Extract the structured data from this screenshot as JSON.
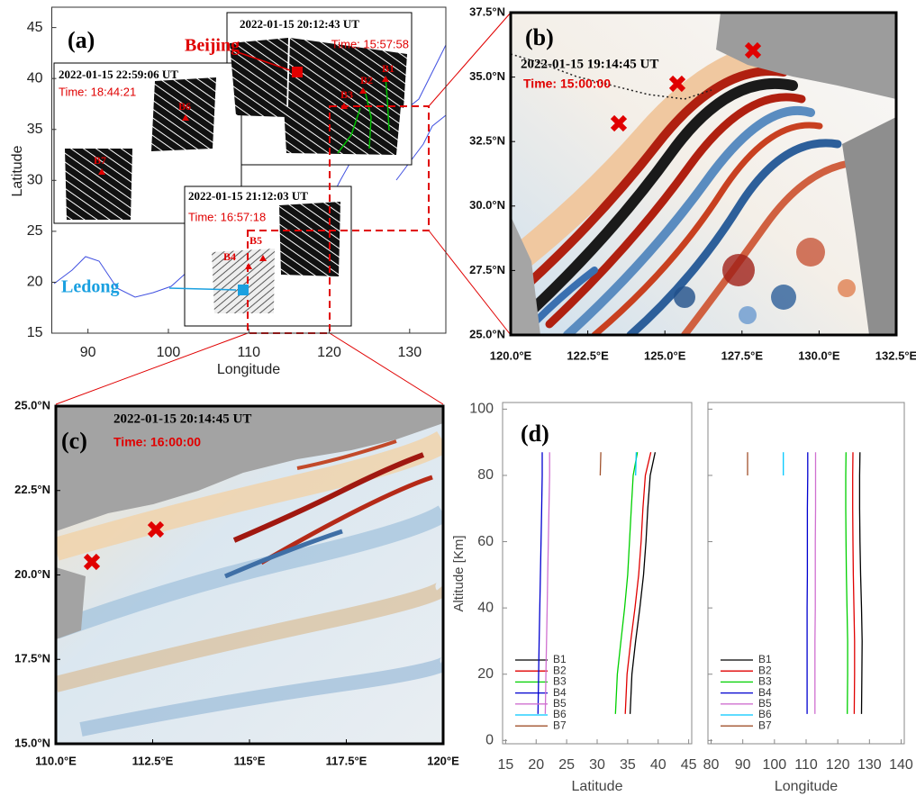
{
  "chart_data": [
    {
      "type": "map",
      "label": "(a)",
      "xlabel": "Longitude",
      "ylabel": "Latitude",
      "xlim": [
        85.5,
        134.5
      ],
      "ylim": [
        15,
        47
      ],
      "xticks": [
        90,
        100,
        110,
        120,
        130
      ],
      "yticks": [
        15,
        20,
        25,
        30,
        35,
        40,
        45
      ],
      "annotations": [
        "2022-01-15 20:12:43 UT",
        "Time: 15:57:58",
        "2022-01-15 22:59:06 UT",
        "Time: 18:44:21",
        "2022-01-15 21:12:03 UT",
        "Time: 16:57:18"
      ],
      "places": [
        "Beijing",
        "Ledong"
      ],
      "stations": [
        "B1",
        "B2",
        "B3",
        "B4",
        "B5",
        "B6",
        "B7"
      ]
    },
    {
      "type": "map",
      "label": "(b)",
      "annotations": [
        "2022-01-15 19:14:45 UT",
        "Time: 15:00:00"
      ],
      "xlim": [
        120,
        132.5
      ],
      "ylim": [
        25,
        37.5
      ],
      "xticks": [
        {
          "value": 120,
          "label": "120.0°E"
        },
        {
          "value": 122.5,
          "label": "122.5°E"
        },
        {
          "value": 125,
          "label": "125.0°E"
        },
        {
          "value": 127.5,
          "label": "127.5°E"
        },
        {
          "value": 130,
          "label": "130.0°E"
        },
        {
          "value": 132.5,
          "label": "132.5°E"
        }
      ],
      "yticks": [
        {
          "value": 25,
          "label": "25.0°N"
        },
        {
          "value": 27.5,
          "label": "27.5°N"
        },
        {
          "value": 30,
          "label": "30.0°N"
        },
        {
          "value": 32.5,
          "label": "32.5°N"
        },
        {
          "value": 35,
          "label": "35.0°N"
        },
        {
          "value": 37.5,
          "label": "37.5°N"
        }
      ]
    },
    {
      "type": "map",
      "label": "(c)",
      "annotations": [
        "2022-01-15 20:14:45 UT",
        "Time: 16:00:00"
      ],
      "xlim": [
        110,
        120
      ],
      "ylim": [
        15,
        25
      ],
      "xticks": [
        {
          "value": 110,
          "label": "110.0°E"
        },
        {
          "value": 112.5,
          "label": "112.5°E"
        },
        {
          "value": 115,
          "label": "115°E"
        },
        {
          "value": 117.5,
          "label": "117.5°E"
        },
        {
          "value": 120,
          "label": "120°E"
        }
      ],
      "yticks": [
        {
          "value": 15,
          "label": "15.0°N"
        },
        {
          "value": 17.5,
          "label": "17.5°N"
        },
        {
          "value": 20,
          "label": "20.0°N"
        },
        {
          "value": 22.5,
          "label": "22.5°N"
        },
        {
          "value": 25,
          "label": "25.0°N"
        }
      ]
    },
    {
      "type": "line",
      "label": "(d)",
      "xlabel": "Latitude",
      "ylabel": "Altitude [Km]",
      "y": [
        8,
        20,
        30,
        40,
        50,
        60,
        70,
        80,
        87
      ],
      "xlim": [
        14.5,
        45.5
      ],
      "ylim": [
        -1,
        102
      ],
      "xticks": [
        15,
        20,
        25,
        30,
        35,
        40,
        45
      ],
      "yticks": [
        0,
        20,
        40,
        60,
        80,
        100
      ],
      "series": [
        {
          "name": "B1",
          "color": "#000000",
          "values": [
            35.4,
            35.7,
            36.3,
            37.0,
            37.6,
            38.0,
            38.3,
            38.7,
            39.5
          ]
        },
        {
          "name": "B2",
          "color": "#e00000",
          "values": [
            34.6,
            34.9,
            35.5,
            36.2,
            36.8,
            37.2,
            37.5,
            37.9,
            38.8
          ]
        },
        {
          "name": "B3",
          "color": "#00d000",
          "values": [
            33.0,
            33.3,
            33.9,
            34.5,
            35.0,
            35.3,
            35.6,
            35.9,
            36.6
          ]
        },
        {
          "name": "B4",
          "color": "#0000d0",
          "values": [
            20.3,
            20.4,
            20.5,
            20.6,
            20.7,
            20.8,
            20.9,
            21.0,
            21.0
          ]
        },
        {
          "name": "B5",
          "color": "#d070d0",
          "values": [
            21.5,
            21.6,
            21.7,
            21.8,
            21.9,
            22.0,
            22.1,
            22.2,
            22.2
          ]
        },
        {
          "name": "B6",
          "color": "#00c8ff",
          "values": [
            null,
            null,
            null,
            null,
            null,
            null,
            null,
            36.3,
            36.4
          ]
        },
        {
          "name": "B7",
          "color": "#a0522d",
          "values": [
            null,
            null,
            null,
            null,
            null,
            null,
            null,
            30.5,
            30.6
          ]
        }
      ]
    },
    {
      "type": "line",
      "xlabel": "Longitude",
      "y": [
        8,
        20,
        30,
        40,
        50,
        60,
        70,
        80,
        87
      ],
      "xlim": [
        79,
        141
      ],
      "ylim": [
        -1,
        102
      ],
      "xticks": [
        80,
        90,
        100,
        110,
        120,
        130,
        140
      ],
      "yticks": [
        0,
        20,
        40,
        60,
        80,
        100
      ],
      "series": [
        {
          "name": "B1",
          "color": "#000000",
          "values": [
            127.5,
            127.6,
            127.7,
            127.5,
            127.2,
            127.0,
            126.9,
            126.9,
            127.0
          ]
        },
        {
          "name": "B2",
          "color": "#e00000",
          "values": [
            125.2,
            125.3,
            125.3,
            125.1,
            124.9,
            124.8,
            124.7,
            124.7,
            124.8
          ]
        },
        {
          "name": "B3",
          "color": "#00d000",
          "values": [
            123.0,
            123.1,
            123.1,
            122.9,
            122.7,
            122.6,
            122.5,
            122.5,
            122.6
          ]
        },
        {
          "name": "B4",
          "color": "#0000d0",
          "values": [
            110.3,
            110.3,
            110.3,
            110.3,
            110.4,
            110.4,
            110.4,
            110.5,
            110.5
          ]
        },
        {
          "name": "B5",
          "color": "#d070d0",
          "values": [
            112.8,
            112.8,
            112.8,
            112.9,
            112.9,
            112.9,
            113.0,
            113.0,
            113.0
          ]
        },
        {
          "name": "B6",
          "color": "#00c8ff",
          "values": [
            null,
            null,
            null,
            null,
            null,
            null,
            null,
            102.8,
            102.8
          ]
        },
        {
          "name": "B7",
          "color": "#a0522d",
          "values": [
            null,
            null,
            null,
            null,
            null,
            null,
            null,
            91.5,
            91.5
          ]
        }
      ]
    }
  ]
}
